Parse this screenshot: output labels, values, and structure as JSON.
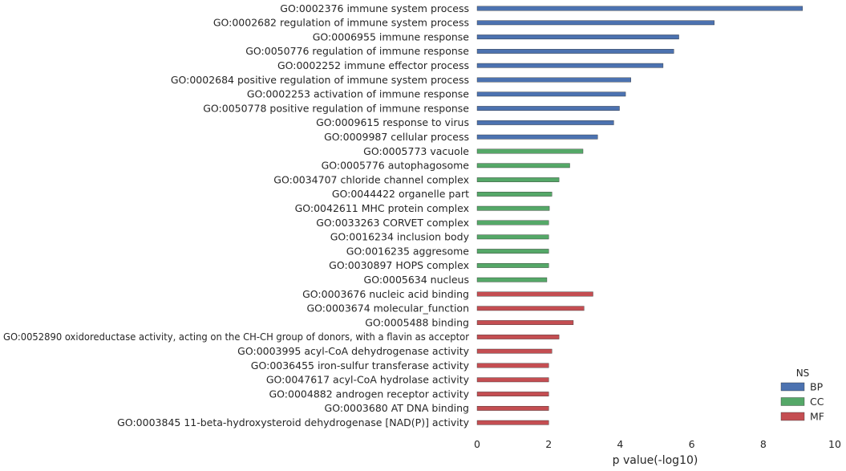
{
  "chart_data": {
    "type": "bar",
    "orientation": "horizontal",
    "xlabel": "p value(-log10)",
    "xlim": [
      0,
      10
    ],
    "xticks": [
      0,
      2,
      4,
      6,
      8,
      10
    ],
    "grid": false,
    "legend_title": "NS",
    "legend_position": "bottom-right",
    "series": [
      {
        "name": "BP",
        "color": "#4c72b0"
      },
      {
        "name": "CC",
        "color": "#55a868"
      },
      {
        "name": "MF",
        "color": "#c44e52"
      }
    ],
    "bars": [
      {
        "label": "GO:0002376 immune system process",
        "ns": "BP",
        "value": 9.1
      },
      {
        "label": "GO:0002682 regulation of immune system process",
        "ns": "BP",
        "value": 6.63
      },
      {
        "label": "GO:0006955 immune response",
        "ns": "BP",
        "value": 5.64
      },
      {
        "label": "GO:0050776 regulation of immune response",
        "ns": "BP",
        "value": 5.5
      },
      {
        "label": "GO:0002252 immune effector process",
        "ns": "BP",
        "value": 5.2
      },
      {
        "label": "GO:0002684 positive regulation of immune system process",
        "ns": "BP",
        "value": 4.3
      },
      {
        "label": "GO:0002253 activation of immune response",
        "ns": "BP",
        "value": 4.15
      },
      {
        "label": "GO:0050778 positive regulation of immune response",
        "ns": "BP",
        "value": 3.98
      },
      {
        "label": "GO:0009615 response to virus",
        "ns": "BP",
        "value": 3.82
      },
      {
        "label": "GO:0009987 cellular process",
        "ns": "BP",
        "value": 3.37
      },
      {
        "label": "GO:0005773 vacuole",
        "ns": "CC",
        "value": 2.96
      },
      {
        "label": "GO:0005776 autophagosome",
        "ns": "CC",
        "value": 2.59
      },
      {
        "label": "GO:0034707 chloride channel complex",
        "ns": "CC",
        "value": 2.29
      },
      {
        "label": "GO:0044422 organelle part",
        "ns": "CC",
        "value": 2.09
      },
      {
        "label": "GO:0042611 MHC protein complex",
        "ns": "CC",
        "value": 2.02
      },
      {
        "label": "GO:0033263 CORVET complex",
        "ns": "CC",
        "value": 2.0
      },
      {
        "label": "GO:0016234 inclusion body",
        "ns": "CC",
        "value": 2.0
      },
      {
        "label": "GO:0016235 aggresome",
        "ns": "CC",
        "value": 2.0
      },
      {
        "label": "GO:0030897 HOPS complex",
        "ns": "CC",
        "value": 2.0
      },
      {
        "label": "GO:0005634 nucleus",
        "ns": "CC",
        "value": 1.95
      },
      {
        "label": "GO:0003676 nucleic acid binding",
        "ns": "MF",
        "value": 3.24
      },
      {
        "label": "GO:0003674 molecular_function",
        "ns": "MF",
        "value": 2.99
      },
      {
        "label": "GO:0005488 binding",
        "ns": "MF",
        "value": 2.69
      },
      {
        "label": "GO:0052890 oxidoreductase activity, acting on the CH-CH group of donors, with a flavin as acceptor",
        "ns": "MF",
        "value": 2.29
      },
      {
        "label": "GO:0003995 acyl-CoA dehydrogenase activity",
        "ns": "MF",
        "value": 2.09
      },
      {
        "label": "GO:0036455 iron-sulfur transferase activity",
        "ns": "MF",
        "value": 2.0
      },
      {
        "label": "GO:0047617 acyl-CoA hydrolase activity",
        "ns": "MF",
        "value": 2.0
      },
      {
        "label": "GO:0004882 androgen receptor activity",
        "ns": "MF",
        "value": 2.0
      },
      {
        "label": "GO:0003680 AT DNA binding",
        "ns": "MF",
        "value": 2.0
      },
      {
        "label": "GO:0003845 11-beta-hydroxysteroid dehydrogenase [NAD(P)] activity",
        "ns": "MF",
        "value": 2.0
      }
    ]
  }
}
